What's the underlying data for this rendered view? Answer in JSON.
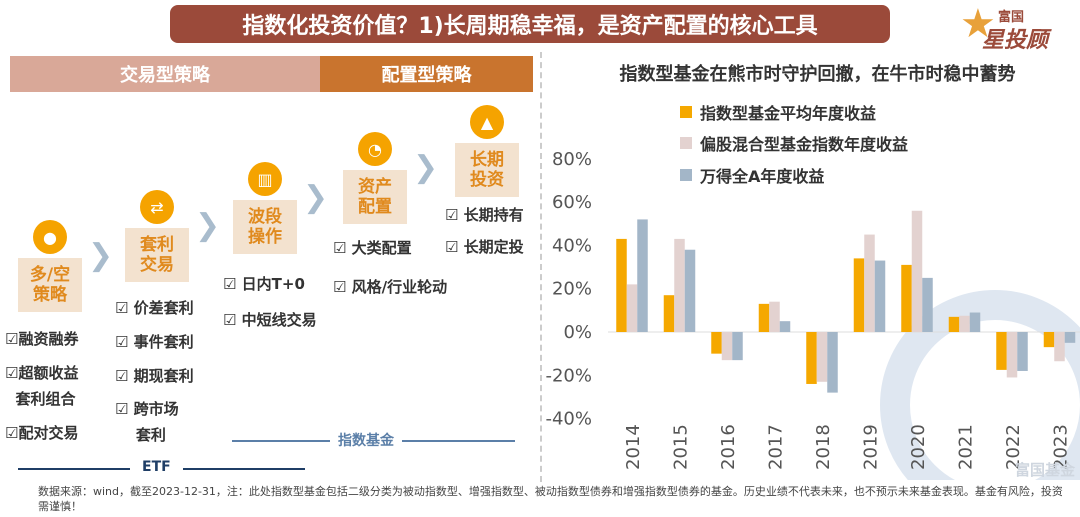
{
  "title": "指数化投资价值？1)长周期稳幸福，是资产配置的核心工具",
  "logo": {
    "line1": "富国",
    "line2": "星投顾"
  },
  "headers": {
    "trading": "交易型策略",
    "allocation": "配置型策略"
  },
  "colors": {
    "title_bg": "#9b4a3a",
    "trading_bg": "#d9a898",
    "allocation_bg": "#c9742e",
    "accent": "#f5a300"
  },
  "steps": [
    {
      "label": "多/空\n策略",
      "icon": "piggy-icon",
      "items": [
        "☑融资融券",
        "☑超额收益\n  套利组合",
        "☑配对交易"
      ]
    },
    {
      "label": "套利\n交易",
      "icon": "exchange-icon",
      "items": [
        "☑ 价差套利",
        "☑ 事件套利",
        "☑ 期现套利",
        "☑ 跨市场\n    套利"
      ]
    },
    {
      "label": "波段\n操作",
      "icon": "candlestick-icon",
      "items": [
        "☑ 日内T+0",
        "☑ 中短线交易"
      ]
    },
    {
      "label": "资产\n配置",
      "icon": "pie-icon",
      "items": [
        "☑ 大类配置",
        "☑ 风格/行业轮动"
      ]
    },
    {
      "label": "长期\n投资",
      "icon": "growth-icon",
      "items": [
        "☑ 长期持有",
        "☑ 长期定投"
      ]
    }
  ],
  "ranges": {
    "index_fund": "指数基金",
    "etf": "ETF"
  },
  "note": "数据来源：wind，截至2023-12-31，注：此处指数型基金包括二级分类为被动指数型、增强指数型、被动指数型债券和增强指数型债券的基金。历史业绩不代表未来，也不预示未来基金表现。基金有风险，投资需谨慎！",
  "watermark": "富国基金",
  "chart_data": {
    "type": "bar",
    "title": "指数型基金在熊市时守护回撤，在牛市时稳中蓄势",
    "categories": [
      "2014",
      "2015",
      "2016",
      "2017",
      "2018",
      "2019",
      "2020",
      "2021",
      "2022",
      "2023"
    ],
    "series": [
      {
        "name": "指数型基金平均年度收益",
        "color": "#f5a800",
        "values": [
          43,
          17,
          -10,
          13,
          -24,
          34,
          31,
          7,
          -17.5,
          -7
        ]
      },
      {
        "name": "偏股混合型基金指数年度收益",
        "color": "#e3d2d0",
        "values": [
          22,
          43,
          -13,
          14,
          -23,
          45,
          56,
          7.5,
          -21,
          -13.5
        ]
      },
      {
        "name": "万得全A年度收益",
        "color": "#a3b6c8",
        "values": [
          52,
          38,
          -13,
          5,
          -28,
          33,
          25,
          9,
          -18,
          -5
        ]
      }
    ],
    "ylim": [
      -40,
      80
    ],
    "yticks": [
      "80%",
      "60%",
      "40%",
      "20%",
      "0%",
      "-20%",
      "-40%"
    ],
    "legend": "top-left",
    "grid": false
  }
}
